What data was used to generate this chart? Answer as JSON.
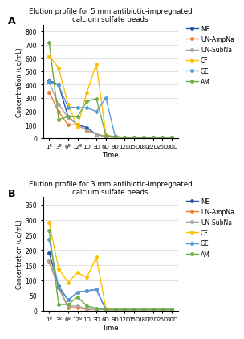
{
  "time_labels": [
    "1º",
    "3º",
    "6º",
    "12º",
    "1D",
    "3D",
    "6D",
    "9D",
    "12D",
    "15D",
    "18D",
    "22D",
    "26D",
    "30D"
  ],
  "panel_A": {
    "title": "Elution profile for 5 mm antibiotic-impregnated\ncalcium sulfate beads",
    "ylim": [
      0,
      850
    ],
    "yticks": [
      0,
      100,
      200,
      300,
      400,
      500,
      600,
      700,
      800
    ],
    "series": {
      "ME": [
        430,
        400,
        160,
        100,
        80,
        25,
        15,
        10,
        5,
        5,
        5,
        5,
        5,
        5
      ],
      "UN-AmpNa": [
        345,
        195,
        100,
        100,
        55,
        30,
        10,
        5,
        5,
        5,
        5,
        5,
        5,
        5
      ],
      "UN-SubNa": [
        420,
        250,
        155,
        100,
        60,
        30,
        10,
        5,
        5,
        5,
        5,
        5,
        5,
        5
      ],
      "CF": [
        615,
        525,
        250,
        85,
        345,
        555,
        25,
        5,
        5,
        5,
        5,
        5,
        5,
        5
      ],
      "GE": [
        420,
        395,
        230,
        230,
        225,
        200,
        300,
        10,
        5,
        5,
        5,
        5,
        5,
        5
      ],
      "AM": [
        715,
        140,
        160,
        160,
        275,
        295,
        20,
        10,
        5,
        5,
        5,
        5,
        5,
        5
      ]
    }
  },
  "panel_B": {
    "title": "Elution profile for 3 mm antibiotic-impregnated\ncalcium sulfate beads",
    "ylim": [
      0,
      375
    ],
    "yticks": [
      0,
      50,
      100,
      150,
      200,
      250,
      300,
      350
    ],
    "series": {
      "ME": [
        190,
        80,
        35,
        60,
        65,
        70,
        3,
        3,
        3,
        3,
        3,
        3,
        3,
        3
      ],
      "UN-AmpNa": [
        160,
        75,
        10,
        10,
        3,
        3,
        3,
        3,
        3,
        3,
        3,
        3,
        3,
        3
      ],
      "UN-SubNa": [
        165,
        75,
        15,
        15,
        5,
        3,
        3,
        3,
        3,
        3,
        3,
        3,
        3,
        3
      ],
      "CF": [
        290,
        138,
        93,
        125,
        110,
        176,
        8,
        3,
        3,
        3,
        3,
        3,
        3,
        3
      ],
      "GE": [
        235,
        75,
        35,
        60,
        65,
        70,
        3,
        3,
        3,
        3,
        3,
        3,
        3,
        3
      ],
      "AM": [
        265,
        20,
        20,
        45,
        15,
        8,
        3,
        3,
        3,
        3,
        3,
        3,
        3,
        3
      ]
    }
  },
  "colors": {
    "ME": "#2457a8",
    "UN-AmpNa": "#ed7d31",
    "UN-SubNa": "#a5a5a5",
    "CF": "#ffc000",
    "GE": "#5b9bd5",
    "AM": "#70ad47"
  },
  "ylabel": "Concentration (ug/mL)",
  "xlabel": "Time",
  "bg_color": "#ffffff"
}
